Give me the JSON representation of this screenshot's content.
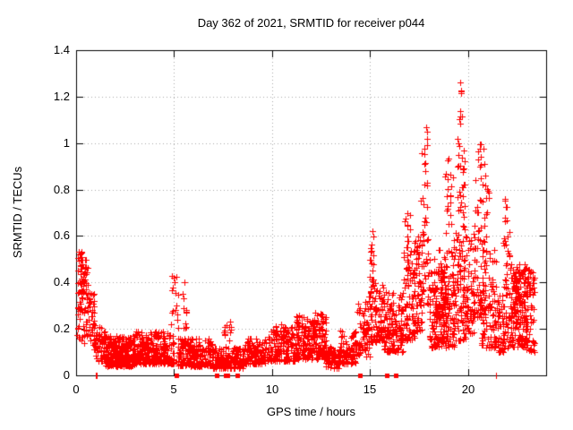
{
  "chart_data": {
    "type": "scatter",
    "title": "Day 362 of 2021, SRMTID for receiver p044",
    "xlabel": "GPS time / hours",
    "ylabel": "SRMTID / TECUs",
    "xlim": [
      0,
      24
    ],
    "ylim": [
      0,
      1.4
    ],
    "x_ticks": [
      {
        "v": 0,
        "label": "0"
      },
      {
        "v": 5,
        "label": "5"
      },
      {
        "v": 10,
        "label": "10"
      },
      {
        "v": 15,
        "label": "15"
      },
      {
        "v": 20,
        "label": "20"
      }
    ],
    "y_ticks": [
      {
        "v": 0,
        "label": "0"
      },
      {
        "v": 0.2,
        "label": "0.2"
      },
      {
        "v": 0.4,
        "label": "0.4"
      },
      {
        "v": 0.6,
        "label": "0.6"
      },
      {
        "v": 0.8,
        "label": "0.8"
      },
      {
        "v": 1,
        "label": "1"
      },
      {
        "v": 1.2,
        "label": "1.2"
      },
      {
        "v": 1.4,
        "label": "1.4"
      }
    ],
    "grid": true,
    "grid_style": "dotted",
    "grid_color": "#a8a8a8",
    "marker": "plus",
    "marker_color": "#ff0000",
    "legend": null,
    "notable_peaks": [
      {
        "hour": 0.2,
        "value": 0.54
      },
      {
        "hour": 5.1,
        "value": 0.43
      },
      {
        "hour": 5.55,
        "value": 0.4
      },
      {
        "hour": 15.1,
        "value": 0.65
      },
      {
        "hour": 17.0,
        "value": 0.73
      },
      {
        "hour": 17.8,
        "value": 1.1
      },
      {
        "hour": 19.6,
        "value": 1.26
      },
      {
        "hour": 20.6,
        "value": 1.0
      },
      {
        "hour": 21.95,
        "value": 0.8
      },
      {
        "hour": 22.6,
        "value": 0.52
      }
    ],
    "band_format": [
      "hour_start",
      "hour_end",
      "value_min",
      "value_max",
      "point_count",
      "low_bias_exponent"
    ],
    "density_bands": [
      [
        0.05,
        0.35,
        0.15,
        0.54,
        45,
        1
      ],
      [
        0.2,
        0.6,
        0.28,
        0.5,
        33,
        1
      ],
      [
        0.35,
        0.95,
        0.13,
        0.36,
        55,
        1.3
      ],
      [
        0.9,
        1.6,
        0.06,
        0.22,
        70,
        1.5
      ],
      [
        1.5,
        3.0,
        0.04,
        0.17,
        260,
        1.6
      ],
      [
        3.0,
        5.0,
        0.05,
        0.19,
        300,
        1.7
      ],
      [
        4.75,
        5.25,
        0.2,
        0.43,
        16,
        1
      ],
      [
        5.45,
        5.65,
        0.2,
        0.4,
        11,
        1
      ],
      [
        5.2,
        7.0,
        0.04,
        0.16,
        220,
        1.6
      ],
      [
        7.0,
        8.6,
        0.03,
        0.12,
        170,
        1.4
      ],
      [
        7.55,
        7.95,
        0.12,
        0.24,
        14,
        1
      ],
      [
        8.6,
        9.8,
        0.05,
        0.16,
        130,
        1.4
      ],
      [
        9.8,
        11.2,
        0.06,
        0.22,
        160,
        1.5
      ],
      [
        11.2,
        12.1,
        0.07,
        0.26,
        120,
        1.5
      ],
      [
        12.1,
        12.75,
        0.07,
        0.27,
        110,
        1.4
      ],
      [
        12.75,
        13.45,
        0.03,
        0.13,
        70,
        1.3
      ],
      [
        13.45,
        14.3,
        0.05,
        0.2,
        90,
        1.4
      ],
      [
        14.3,
        15.0,
        0.08,
        0.32,
        70,
        1.3
      ],
      [
        14.95,
        15.2,
        0.3,
        0.65,
        22,
        1
      ],
      [
        15.0,
        15.7,
        0.14,
        0.42,
        90,
        1.4
      ],
      [
        15.7,
        16.7,
        0.1,
        0.36,
        130,
        1.5
      ],
      [
        16.7,
        17.3,
        0.15,
        0.55,
        80,
        1.4
      ],
      [
        16.75,
        17.05,
        0.55,
        0.73,
        12,
        1
      ],
      [
        17.25,
        17.65,
        0.18,
        0.62,
        70,
        1.4
      ],
      [
        17.6,
        18.05,
        0.3,
        0.8,
        40,
        1.2
      ],
      [
        17.62,
        17.95,
        0.8,
        1.1,
        14,
        1
      ],
      [
        18.05,
        19.3,
        0.12,
        0.55,
        190,
        1.5
      ],
      [
        18.3,
        19.0,
        0.15,
        0.45,
        70,
        1
      ],
      [
        18.8,
        19.25,
        0.6,
        0.97,
        20,
        1.1
      ],
      [
        19.3,
        19.9,
        0.15,
        0.62,
        90,
        1.3
      ],
      [
        19.45,
        19.85,
        0.62,
        1.02,
        32,
        1
      ],
      [
        19.55,
        19.7,
        1.05,
        1.15,
        5,
        1
      ],
      [
        19.55,
        19.68,
        1.19,
        1.27,
        5,
        1
      ],
      [
        19.9,
        20.35,
        0.18,
        0.6,
        60,
        1.3
      ],
      [
        20.3,
        20.9,
        0.25,
        0.85,
        60,
        1.3
      ],
      [
        20.45,
        20.9,
        0.85,
        1.01,
        12,
        1
      ],
      [
        20.9,
        21.1,
        0.5,
        0.82,
        10,
        1
      ],
      [
        20.7,
        21.45,
        0.12,
        0.55,
        100,
        1.5
      ],
      [
        21.45,
        21.85,
        0.1,
        0.35,
        55,
        1.3
      ],
      [
        21.8,
        22.15,
        0.12,
        0.62,
        45,
        1.2
      ],
      [
        21.88,
        22.02,
        0.62,
        0.8,
        8,
        1
      ],
      [
        22.15,
        23.05,
        0.12,
        0.48,
        140,
        1.3
      ],
      [
        22.35,
        22.95,
        0.2,
        0.46,
        55,
        1
      ],
      [
        23.0,
        23.4,
        0.1,
        0.46,
        55,
        1.2
      ]
    ],
    "zero_markers": {
      "squares": [
        5.13,
        7.18,
        7.62,
        7.74,
        8.25,
        14.48,
        15.85,
        16.3
      ],
      "axis_ticks": [
        1.02,
        1.07,
        21.43
      ]
    }
  }
}
